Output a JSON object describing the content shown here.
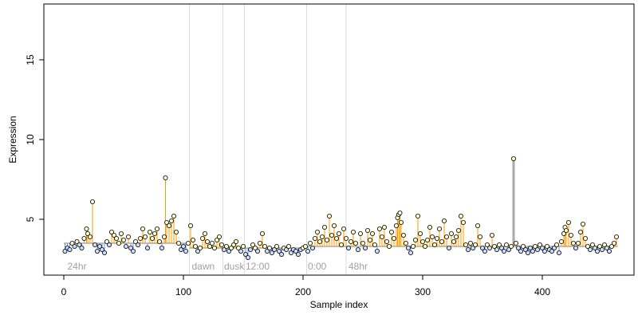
{
  "chart_data": {
    "type": "scatter",
    "title": "",
    "xlabel": "Sample index",
    "ylabel": "Expression",
    "xlim": [
      0,
      480
    ],
    "ylim": [
      1.5,
      18.5
    ],
    "x_ticks": [
      0,
      100,
      200,
      300,
      400
    ],
    "y_ticks": [
      5,
      10,
      15
    ],
    "grid": false,
    "baseline": 3.5,
    "region_lines_x": [
      105,
      133,
      151,
      203,
      236
    ],
    "region_labels": [
      {
        "x": 3,
        "text": "24hr"
      },
      {
        "x": 107,
        "text": "dawn"
      },
      {
        "x": 134,
        "text": "dusk"
      },
      {
        "x": 152,
        "text": "12:00"
      },
      {
        "x": 204,
        "text": "0:00"
      },
      {
        "x": 238,
        "text": "48hr"
      }
    ],
    "segment_baselines": [
      {
        "from": 0,
        "to": 105,
        "value": 3.5
      },
      {
        "from": 105,
        "to": 203,
        "value": 3.2
      },
      {
        "from": 203,
        "to": 463,
        "value": 3.3
      }
    ],
    "highlight_x": 376,
    "colors": {
      "above_line": "#ff9900",
      "below_line": "#6f96d8",
      "highlight_line": "#aaaaaa",
      "point_fill": "#ffffcc",
      "point_fill_low": "#c8ddff",
      "region_line": "#dddddd",
      "region_text": "#a0a0a0"
    },
    "series": [
      {
        "points": [
          [
            1,
            3.0
          ],
          [
            3,
            3.2
          ],
          [
            5,
            3.1
          ],
          [
            7,
            3.5
          ],
          [
            9,
            3.3
          ],
          [
            11,
            3.6
          ],
          [
            13,
            3.4
          ],
          [
            15,
            3.2
          ],
          [
            17,
            3.8
          ],
          [
            19,
            4.4
          ],
          [
            20,
            4.1
          ],
          [
            22,
            3.9
          ],
          [
            24,
            6.1
          ],
          [
            26,
            3.4
          ],
          [
            28,
            3.0
          ],
          [
            30,
            3.3
          ],
          [
            32,
            3.1
          ],
          [
            34,
            2.9
          ],
          [
            36,
            3.6
          ],
          [
            38,
            3.4
          ],
          [
            40,
            4.2
          ],
          [
            42,
            4.0
          ],
          [
            44,
            3.8
          ],
          [
            46,
            3.5
          ],
          [
            48,
            4.1
          ],
          [
            50,
            3.7
          ],
          [
            52,
            3.3
          ],
          [
            54,
            3.9
          ],
          [
            56,
            3.2
          ],
          [
            58,
            3.0
          ],
          [
            60,
            3.6
          ],
          [
            62,
            3.4
          ],
          [
            64,
            3.8
          ],
          [
            66,
            4.4
          ],
          [
            68,
            3.9
          ],
          [
            70,
            3.2
          ],
          [
            72,
            4.2
          ],
          [
            74,
            3.8
          ],
          [
            76,
            4.1
          ],
          [
            78,
            4.4
          ],
          [
            80,
            3.6
          ],
          [
            82,
            3.2
          ],
          [
            84,
            3.9
          ],
          [
            85,
            7.6
          ],
          [
            86,
            4.8
          ],
          [
            88,
            4.6
          ],
          [
            90,
            4.9
          ],
          [
            92,
            5.2
          ],
          [
            94,
            4.2
          ],
          [
            96,
            3.5
          ],
          [
            98,
            3.1
          ],
          [
            100,
            3.3
          ],
          [
            102,
            3.0
          ],
          [
            104,
            3.5
          ],
          [
            106,
            4.6
          ],
          [
            108,
            3.7
          ],
          [
            110,
            3.3
          ],
          [
            112,
            3.0
          ],
          [
            114,
            3.2
          ],
          [
            116,
            3.8
          ],
          [
            118,
            4.1
          ],
          [
            120,
            3.6
          ],
          [
            122,
            3.3
          ],
          [
            124,
            3.5
          ],
          [
            126,
            3.2
          ],
          [
            128,
            3.7
          ],
          [
            130,
            3.9
          ],
          [
            132,
            3.4
          ],
          [
            134,
            3.1
          ],
          [
            136,
            3.3
          ],
          [
            138,
            3.0
          ],
          [
            140,
            3.2
          ],
          [
            142,
            3.4
          ],
          [
            144,
            3.6
          ],
          [
            146,
            3.2
          ],
          [
            148,
            3.0
          ],
          [
            150,
            3.3
          ],
          [
            152,
            2.8
          ],
          [
            154,
            2.6
          ],
          [
            156,
            3.1
          ],
          [
            158,
            3.4
          ],
          [
            160,
            3.2
          ],
          [
            162,
            3.0
          ],
          [
            164,
            3.5
          ],
          [
            166,
            4.1
          ],
          [
            168,
            3.3
          ],
          [
            170,
            3.0
          ],
          [
            172,
            3.2
          ],
          [
            174,
            2.9
          ],
          [
            176,
            3.1
          ],
          [
            178,
            3.3
          ],
          [
            180,
            3.0
          ],
          [
            182,
            2.8
          ],
          [
            184,
            3.2
          ],
          [
            186,
            3.1
          ],
          [
            188,
            3.3
          ],
          [
            190,
            2.9
          ],
          [
            192,
            3.1
          ],
          [
            194,
            3.0
          ],
          [
            196,
            2.8
          ],
          [
            198,
            3.1
          ],
          [
            200,
            3.2
          ],
          [
            202,
            3.3
          ],
          [
            204,
            3.0
          ],
          [
            206,
            3.5
          ],
          [
            208,
            3.2
          ],
          [
            210,
            3.8
          ],
          [
            212,
            4.2
          ],
          [
            214,
            3.6
          ],
          [
            216,
            3.9
          ],
          [
            218,
            4.5
          ],
          [
            220,
            3.7
          ],
          [
            222,
            5.2
          ],
          [
            224,
            4.0
          ],
          [
            226,
            4.6
          ],
          [
            228,
            3.8
          ],
          [
            230,
            4.1
          ],
          [
            232,
            3.4
          ],
          [
            234,
            4.4
          ],
          [
            236,
            3.8
          ],
          [
            238,
            3.2
          ],
          [
            240,
            3.6
          ],
          [
            242,
            4.2
          ],
          [
            244,
            3.5
          ],
          [
            246,
            3.1
          ],
          [
            248,
            4.1
          ],
          [
            250,
            3.5
          ],
          [
            252,
            3.2
          ],
          [
            254,
            4.3
          ],
          [
            256,
            3.7
          ],
          [
            258,
            4.1
          ],
          [
            260,
            3.4
          ],
          [
            262,
            3.0
          ],
          [
            264,
            4.4
          ],
          [
            266,
            3.9
          ],
          [
            268,
            4.5
          ],
          [
            270,
            3.6
          ],
          [
            272,
            3.3
          ],
          [
            274,
            4.2
          ],
          [
            276,
            3.8
          ],
          [
            278,
            4.6
          ],
          [
            279,
            5.1
          ],
          [
            280,
            5.3
          ],
          [
            281,
            5.4
          ],
          [
            282,
            4.8
          ],
          [
            284,
            4.0
          ],
          [
            286,
            3.5
          ],
          [
            288,
            3.2
          ],
          [
            290,
            2.9
          ],
          [
            292,
            3.3
          ],
          [
            294,
            3.7
          ],
          [
            296,
            5.2
          ],
          [
            298,
            4.1
          ],
          [
            300,
            3.6
          ],
          [
            302,
            3.3
          ],
          [
            304,
            3.7
          ],
          [
            306,
            4.5
          ],
          [
            308,
            3.9
          ],
          [
            310,
            3.4
          ],
          [
            312,
            3.8
          ],
          [
            314,
            4.4
          ],
          [
            316,
            3.6
          ],
          [
            318,
            4.9
          ],
          [
            320,
            3.9
          ],
          [
            322,
            3.2
          ],
          [
            324,
            4.1
          ],
          [
            326,
            3.6
          ],
          [
            328,
            3.9
          ],
          [
            330,
            4.3
          ],
          [
            332,
            5.2
          ],
          [
            334,
            4.8
          ],
          [
            336,
            3.4
          ],
          [
            338,
            3.1
          ],
          [
            340,
            3.5
          ],
          [
            342,
            3.2
          ],
          [
            344,
            3.4
          ],
          [
            346,
            4.6
          ],
          [
            348,
            3.9
          ],
          [
            350,
            3.2
          ],
          [
            352,
            3.0
          ],
          [
            354,
            3.4
          ],
          [
            356,
            3.2
          ],
          [
            358,
            4.0
          ],
          [
            360,
            3.3
          ],
          [
            362,
            3.1
          ],
          [
            364,
            3.4
          ],
          [
            366,
            3.2
          ],
          [
            368,
            3.0
          ],
          [
            370,
            3.4
          ],
          [
            372,
            3.1
          ],
          [
            374,
            3.3
          ],
          [
            376,
            8.8
          ],
          [
            378,
            3.5
          ],
          [
            380,
            3.2
          ],
          [
            382,
            3.0
          ],
          [
            384,
            3.3
          ],
          [
            386,
            3.1
          ],
          [
            388,
            2.9
          ],
          [
            390,
            3.2
          ],
          [
            392,
            3.0
          ],
          [
            394,
            3.3
          ],
          [
            396,
            3.1
          ],
          [
            398,
            3.4
          ],
          [
            400,
            3.2
          ],
          [
            402,
            3.0
          ],
          [
            404,
            3.3
          ],
          [
            406,
            3.1
          ],
          [
            408,
            3.0
          ],
          [
            410,
            3.2
          ],
          [
            412,
            3.4
          ],
          [
            414,
            2.9
          ],
          [
            416,
            3.6
          ],
          [
            418,
            4.1
          ],
          [
            419,
            4.5
          ],
          [
            420,
            4.3
          ],
          [
            422,
            4.8
          ],
          [
            424,
            4.0
          ],
          [
            426,
            3.5
          ],
          [
            428,
            3.2
          ],
          [
            430,
            3.5
          ],
          [
            432,
            4.2
          ],
          [
            434,
            4.7
          ],
          [
            436,
            3.8
          ],
          [
            438,
            3.3
          ],
          [
            440,
            3.1
          ],
          [
            442,
            3.4
          ],
          [
            444,
            3.2
          ],
          [
            446,
            3.0
          ],
          [
            448,
            3.3
          ],
          [
            450,
            3.1
          ],
          [
            452,
            3.4
          ],
          [
            454,
            3.2
          ],
          [
            456,
            3.0
          ],
          [
            458,
            3.3
          ],
          [
            460,
            3.5
          ],
          [
            462,
            3.9
          ]
        ]
      }
    ]
  }
}
